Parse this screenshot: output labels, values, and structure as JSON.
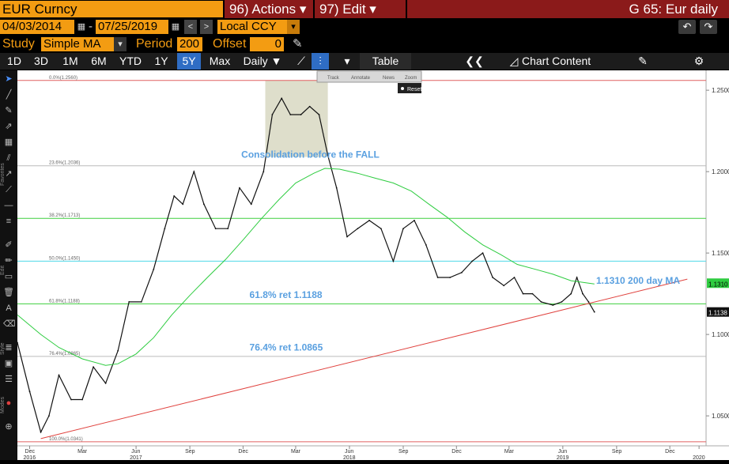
{
  "topbar": {
    "security": "EUR Curncy",
    "actions_menu": "96) Actions ▾",
    "edit_menu": "97) Edit ▾",
    "window_title": "G 65: Eur daily"
  },
  "datebar": {
    "start_date": "04/03/2014",
    "dash": "-",
    "end_date": "07/25/2019",
    "currency": "Local CCY"
  },
  "studybar": {
    "study_label": "Study",
    "study_value": "Simple MA",
    "period_label": "Period",
    "period_value": "200",
    "offset_label": "Offset",
    "offset_value": "0"
  },
  "timebar": {
    "ranges": [
      "1D",
      "3D",
      "1M",
      "6M",
      "YTD",
      "1Y",
      "5Y",
      "Max"
    ],
    "active_range": "5Y",
    "frequency": "Daily ▼",
    "table_label": "Table",
    "chart_content_label": "Chart Content"
  },
  "chart_tools": {
    "track": "Track",
    "annotate": "Annotate",
    "news": "News",
    "zoom": "Zoom",
    "reset": "Reset"
  },
  "side_words": {
    "favorites": "Favorites",
    "edit": "Edit",
    "style": "Style",
    "modes": "Modes"
  },
  "colors": {
    "accent_orange": "#f39c12",
    "menu_red": "#8b1a1a",
    "price": "#111111",
    "ma200": "#2ecc40",
    "trendline": "#e0433f",
    "fib_red": "#e06060",
    "fib_green": "#3ecf3e",
    "fib_cyan": "#4fd8e8",
    "fib_gray": "#bbbbbb",
    "annot_blue": "#5aa0e0",
    "box_fill": "#c8c8a8"
  },
  "chart_data": {
    "type": "line",
    "title": "",
    "xlabel": "",
    "ylabel": "",
    "xlim": [
      "2016-11-10",
      "2020-02-01"
    ],
    "ylim": [
      1.0316,
      1.2622
    ],
    "y_ticks": [
      "1.2500",
      "1.2000",
      "1.1500",
      "1.1000",
      "1.0500"
    ],
    "x_ticks": [
      {
        "month": "Dec",
        "date": "2016-12-01",
        "year": "2016"
      },
      {
        "month": "Mar",
        "date": "2017-03-01"
      },
      {
        "month": "Jun",
        "date": "2017-06-01",
        "year": "2017"
      },
      {
        "month": "Sep",
        "date": "2017-09-01"
      },
      {
        "month": "Dec",
        "date": "2017-12-01"
      },
      {
        "month": "Mar",
        "date": "2018-03-01"
      },
      {
        "month": "Jun",
        "date": "2018-06-01",
        "year": "2018"
      },
      {
        "month": "Sep",
        "date": "2018-09-01"
      },
      {
        "month": "Dec",
        "date": "2018-12-01"
      },
      {
        "month": "Mar",
        "date": "2019-03-01"
      },
      {
        "month": "Jun",
        "date": "2019-06-01",
        "year": "2019"
      },
      {
        "month": "Sep",
        "date": "2019-09-01"
      },
      {
        "month": "Dec",
        "date": "2019-12-01"
      },
      {
        "month": "",
        "date": "2020-01-20",
        "year": "2020"
      }
    ],
    "series": [
      {
        "name": "",
        "role": "price",
        "x": [
          "2016-11-10",
          "2016-12-01",
          "2016-12-20",
          "2017-01-03",
          "2017-01-20",
          "2017-02-10",
          "2017-03-01",
          "2017-03-20",
          "2017-04-10",
          "2017-05-01",
          "2017-05-20",
          "2017-06-10",
          "2017-07-01",
          "2017-07-20",
          "2017-08-05",
          "2017-08-20",
          "2017-09-08",
          "2017-09-25",
          "2017-10-15",
          "2017-11-05",
          "2017-11-25",
          "2017-12-15",
          "2018-01-05",
          "2018-01-20",
          "2018-02-05",
          "2018-02-20",
          "2018-03-10",
          "2018-03-25",
          "2018-04-10",
          "2018-04-25",
          "2018-05-10",
          "2018-05-28",
          "2018-06-15",
          "2018-07-05",
          "2018-07-25",
          "2018-08-15",
          "2018-09-01",
          "2018-09-20",
          "2018-10-10",
          "2018-10-30",
          "2018-11-20",
          "2018-12-10",
          "2018-12-28",
          "2019-01-15",
          "2019-02-01",
          "2019-02-20",
          "2019-03-10",
          "2019-03-25",
          "2019-04-10",
          "2019-04-25",
          "2019-05-15",
          "2019-05-30",
          "2019-06-15",
          "2019-06-25",
          "2019-07-05",
          "2019-07-15",
          "2019-07-25"
        ],
        "values": [
          1.095,
          1.065,
          1.04,
          1.05,
          1.075,
          1.06,
          1.06,
          1.08,
          1.07,
          1.09,
          1.12,
          1.12,
          1.14,
          1.165,
          1.185,
          1.18,
          1.2,
          1.18,
          1.165,
          1.165,
          1.19,
          1.18,
          1.2,
          1.235,
          1.245,
          1.235,
          1.235,
          1.24,
          1.235,
          1.21,
          1.19,
          1.16,
          1.165,
          1.17,
          1.165,
          1.145,
          1.165,
          1.17,
          1.155,
          1.135,
          1.135,
          1.138,
          1.145,
          1.15,
          1.135,
          1.13,
          1.135,
          1.125,
          1.125,
          1.12,
          1.118,
          1.12,
          1.125,
          1.135,
          1.125,
          1.12,
          1.1138
        ]
      },
      {
        "name": "1.1310 200 day MA",
        "role": "ma200",
        "x": [
          "2016-11-10",
          "2016-12-20",
          "2017-01-20",
          "2017-03-01",
          "2017-04-10",
          "2017-05-01",
          "2017-06-01",
          "2017-07-01",
          "2017-08-01",
          "2017-09-01",
          "2017-10-01",
          "2017-11-01",
          "2017-12-01",
          "2018-01-01",
          "2018-02-01",
          "2018-03-01",
          "2018-04-01",
          "2018-04-20",
          "2018-05-15",
          "2018-06-15",
          "2018-07-15",
          "2018-08-15",
          "2018-09-15",
          "2018-10-15",
          "2018-11-15",
          "2018-12-15",
          "2019-01-15",
          "2019-02-15",
          "2019-03-15",
          "2019-04-15",
          "2019-05-15",
          "2019-06-15",
          "2019-07-25"
        ],
        "values": [
          1.112,
          1.1,
          1.092,
          1.085,
          1.081,
          1.082,
          1.088,
          1.098,
          1.112,
          1.124,
          1.135,
          1.146,
          1.158,
          1.171,
          1.183,
          1.193,
          1.199,
          1.202,
          1.2015,
          1.199,
          1.196,
          1.193,
          1.188,
          1.18,
          1.172,
          1.163,
          1.155,
          1.149,
          1.143,
          1.14,
          1.137,
          1.133,
          1.131
        ]
      },
      {
        "name": "",
        "role": "trendline",
        "x": [
          "2016-12-20",
          "2019-12-31"
        ],
        "values": [
          1.036,
          1.134
        ]
      }
    ],
    "fib_levels": [
      {
        "label": "0.0%(1.2560)",
        "value": 1.256,
        "color": "#e06060"
      },
      {
        "label": "23.6%(1.2036)",
        "value": 1.2036,
        "color": "#bbbbbb"
      },
      {
        "label": "38.2%(1.1713)",
        "value": 1.1713,
        "color": "#3ecf3e"
      },
      {
        "label": "50.0%(1.1450)",
        "value": 1.145,
        "color": "#4fd8e8"
      },
      {
        "label": "61.8%(1.1188)",
        "value": 1.1188,
        "color": "#3ecf3e"
      },
      {
        "label": "76.4%(1.0865)",
        "value": 1.0865,
        "color": "#bbbbbb"
      },
      {
        "label": "100.0%(1.0341)",
        "value": 1.0341,
        "color": "#e06060"
      }
    ],
    "consolidation_box": {
      "x0": "2018-01-08",
      "x1": "2018-04-25",
      "y0": 1.209,
      "y1": 1.256
    },
    "annotations": [
      {
        "text": "Consolidation before the FALL",
        "x": "2017-11-28",
        "y": 1.2085
      },
      {
        "text": "61.8% ret 1.1188",
        "x": "2017-12-12",
        "y": 1.1225
      },
      {
        "text": "76.4% ret 1.0865",
        "x": "2017-12-12",
        "y": 1.09
      },
      {
        "text": "1.1310 200 day MA",
        "x": "2019-07-28",
        "y": 1.1312
      }
    ],
    "last_labels": {
      "ma": "1.1310",
      "price": "1.1138"
    },
    "grid": false,
    "legend": "none"
  }
}
